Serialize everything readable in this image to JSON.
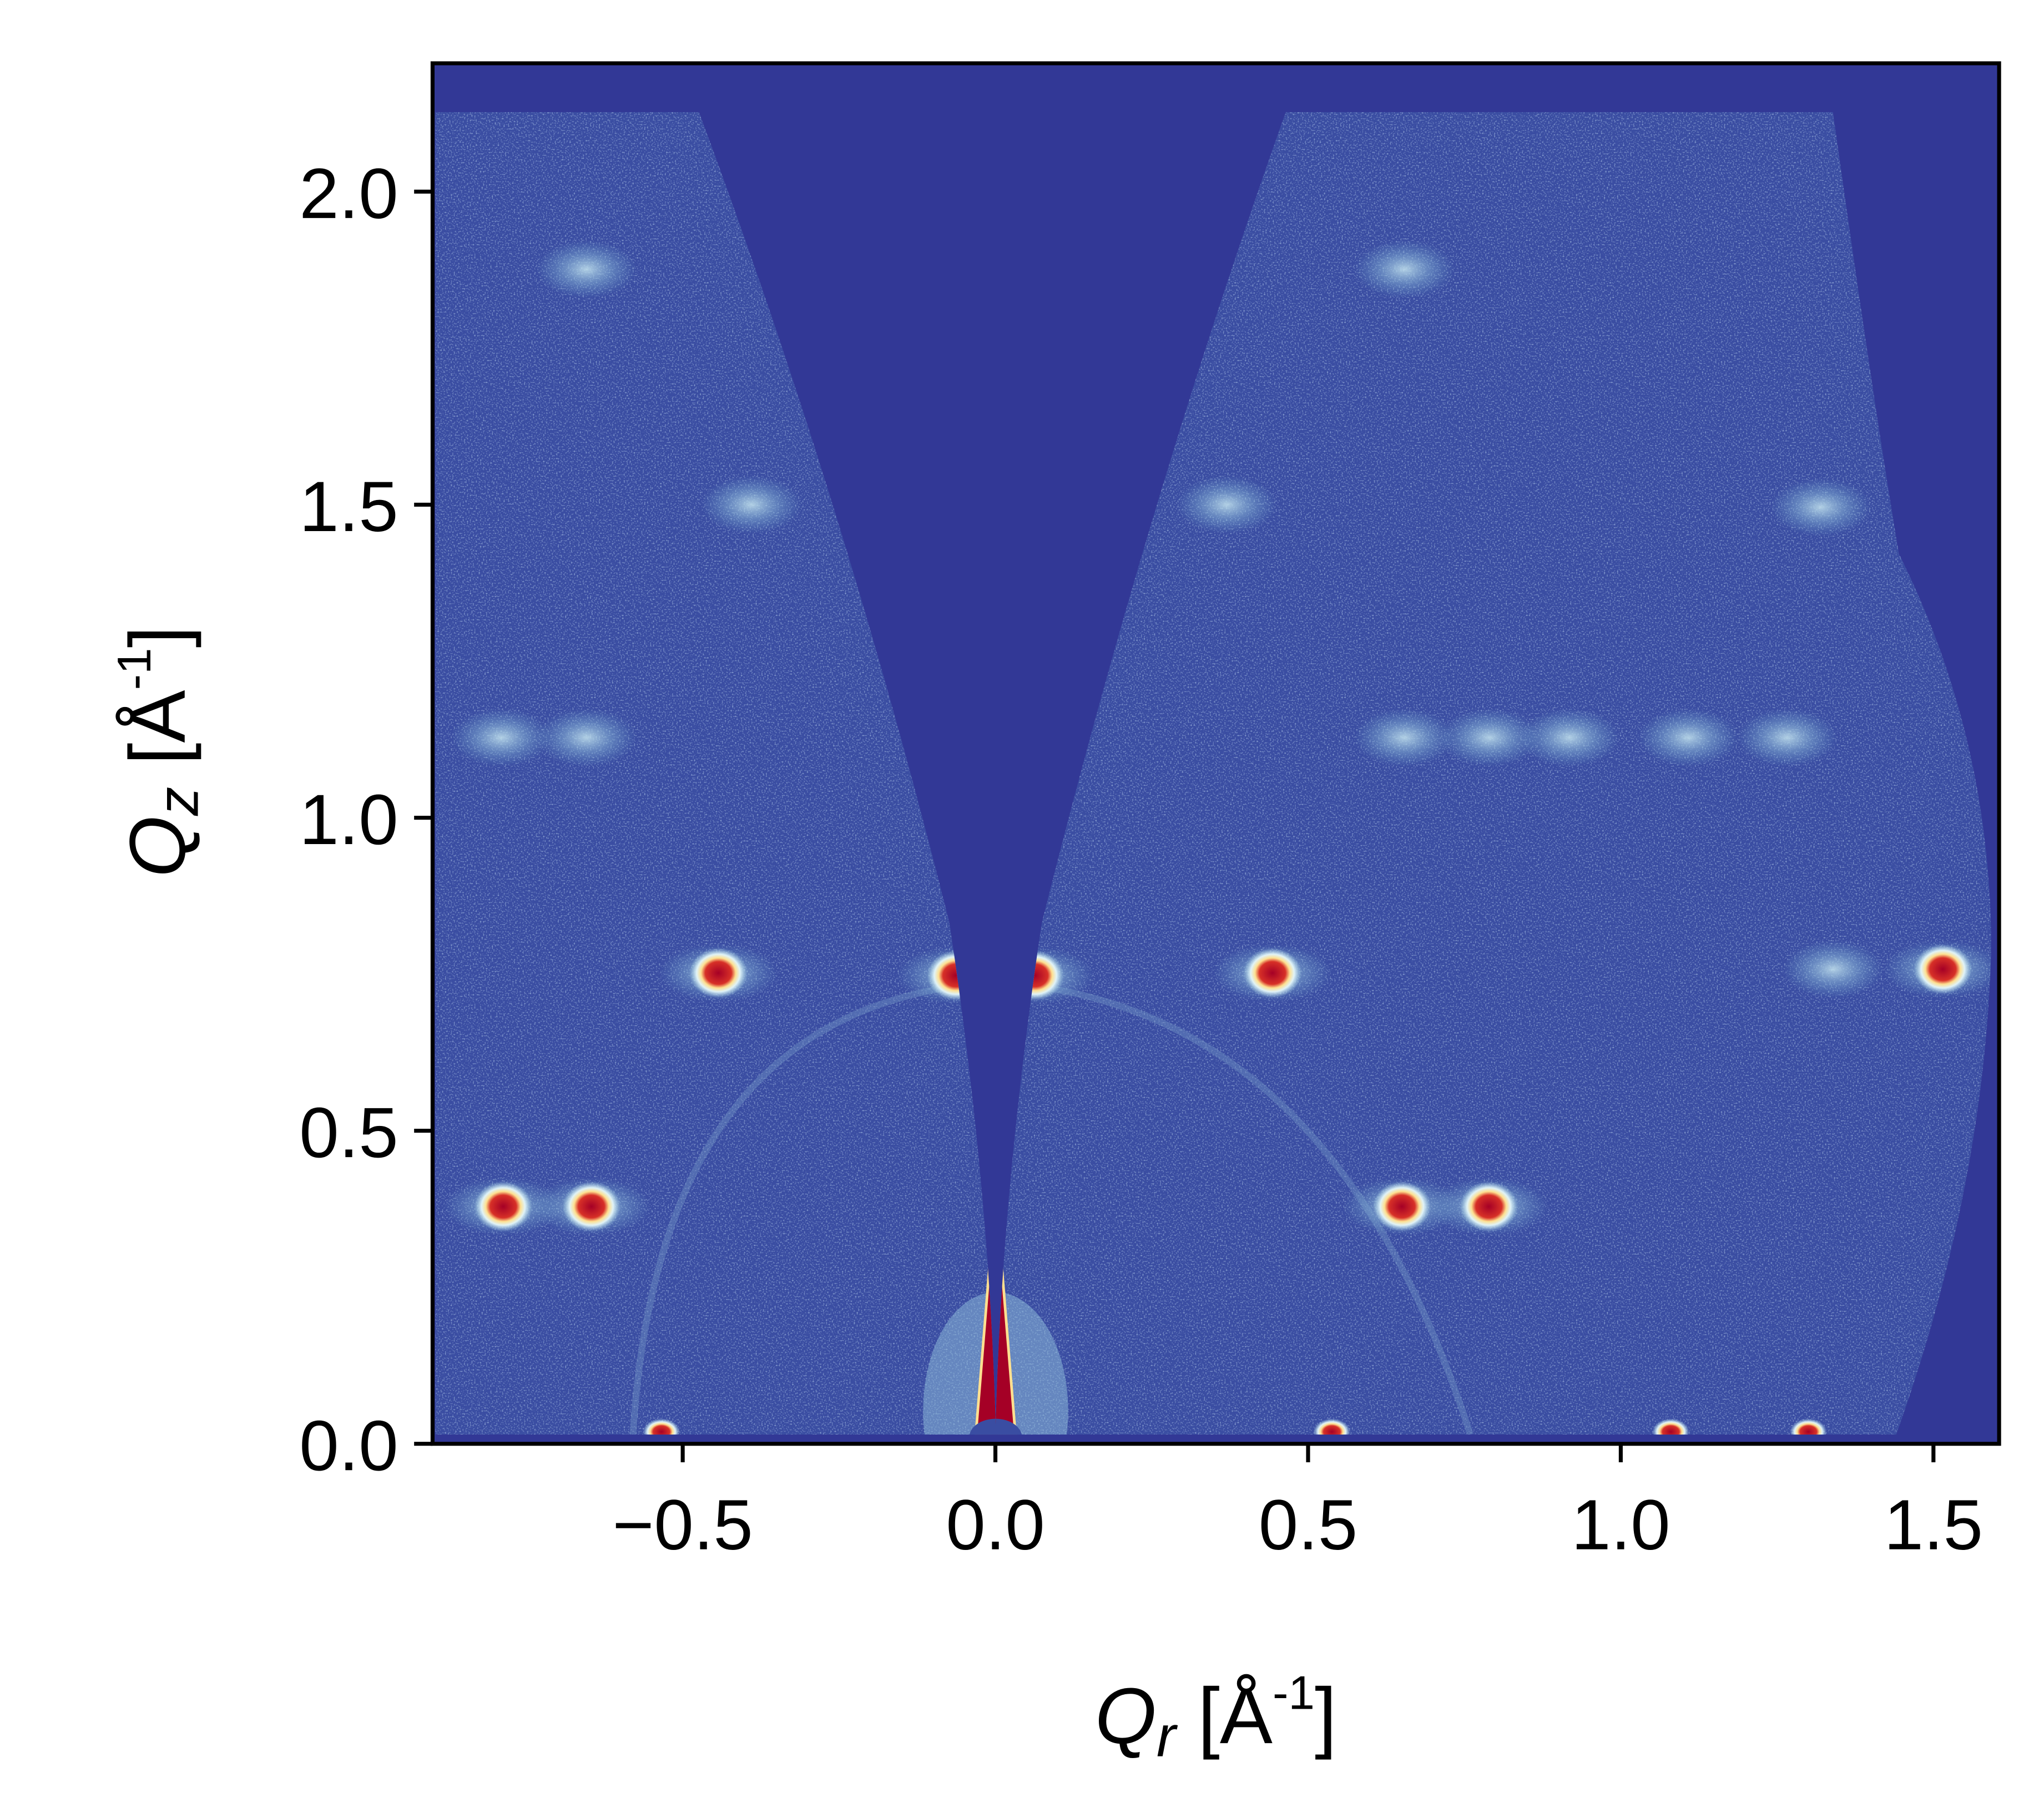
{
  "chart_data": {
    "type": "heatmap",
    "title": "",
    "xlabel": {
      "symbol": "Q",
      "sub": "r",
      "unit_open": " [Å",
      "unit_sup": "-1",
      "unit_close": "]"
    },
    "ylabel": {
      "symbol": "Q",
      "sub": "z",
      "unit_open": " [Å",
      "unit_sup": "-1",
      "unit_close": "]"
    },
    "xlim": [
      -0.9,
      1.605
    ],
    "ylim": [
      0.0,
      2.205
    ],
    "xticks": [
      -0.5,
      0.0,
      0.5,
      1.0,
      1.5
    ],
    "xtick_labels": [
      "−0.5",
      "0.0",
      "0.5",
      "1.0",
      "1.5"
    ],
    "yticks": [
      0.0,
      0.5,
      1.0,
      1.5,
      2.0
    ],
    "ytick_labels": [
      "0.0",
      "0.5",
      "1.0",
      "1.5",
      "2.0"
    ],
    "colormap": "RdYlBu_r",
    "colors": {
      "background": "#323896",
      "data_base": "#3a4da2",
      "peak_core": "#a50026",
      "peak_mid": "#fee090",
      "peak_halo": "#abd9e9"
    },
    "strong_peaks": [
      {
        "qr": -0.443,
        "qz": 0.752
      },
      {
        "qr": -0.063,
        "qz": 0.748
      },
      {
        "qr": 0.063,
        "qz": 0.748
      },
      {
        "qr": 0.443,
        "qz": 0.752
      },
      {
        "qr": 1.515,
        "qz": 0.758
      },
      {
        "qr": -0.787,
        "qz": 0.379
      },
      {
        "qr": -0.646,
        "qz": 0.379
      },
      {
        "qr": 0.65,
        "qz": 0.379
      },
      {
        "qr": 0.789,
        "qz": 0.379
      }
    ],
    "weak_peaks": [
      {
        "qr": -0.654,
        "qz": 1.876
      },
      {
        "qr": 0.654,
        "qz": 1.876
      },
      {
        "qr": -0.654,
        "qz": 1.128
      },
      {
        "qr": -0.79,
        "qz": 1.128
      },
      {
        "qr": 0.654,
        "qz": 1.128
      },
      {
        "qr": 0.79,
        "qz": 1.128
      },
      {
        "qr": 0.918,
        "qz": 1.128
      },
      {
        "qr": 1.108,
        "qz": 1.128
      },
      {
        "qr": 1.266,
        "qz": 1.128
      },
      {
        "qr": -0.39,
        "qz": 1.5
      },
      {
        "qr": 0.37,
        "qz": 1.5
      },
      {
        "qr": 1.32,
        "qz": 1.496
      },
      {
        "qr": 1.34,
        "qz": 0.758
      }
    ],
    "horizon_peaks": [
      {
        "qr": -0.534,
        "qz": 0.015
      },
      {
        "qr": 0.538,
        "qz": 0.015
      },
      {
        "qr": 1.08,
        "qz": 0.015
      },
      {
        "qr": 1.3,
        "qz": 0.015
      }
    ]
  }
}
